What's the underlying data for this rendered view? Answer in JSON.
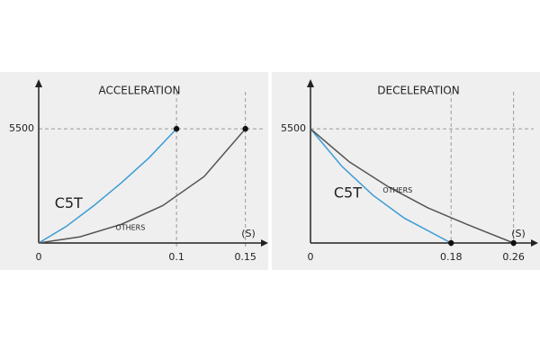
{
  "chart_data": [
    {
      "type": "line",
      "title": "ACCELERATION",
      "x_label": "(S)",
      "xlim": [
        0,
        0.16
      ],
      "ylim": [
        0,
        7500
      ],
      "xticks": [
        0,
        0.1,
        0.15
      ],
      "yticks": [
        5500
      ],
      "grid": true,
      "series": [
        {
          "name": "C5T",
          "color": "#3b9bd6",
          "x": [
            0,
            0.02,
            0.04,
            0.06,
            0.08,
            0.1
          ],
          "values": [
            0,
            800,
            1800,
            2900,
            4100,
            5500
          ]
        },
        {
          "name": "OTHERS",
          "color": "#555555",
          "x": [
            0,
            0.03,
            0.06,
            0.09,
            0.12,
            0.15
          ],
          "values": [
            0,
            300,
            900,
            1800,
            3200,
            5500
          ]
        }
      ]
    },
    {
      "type": "line",
      "title": "DECELERATION",
      "x_label": "(S)",
      "xlim": [
        0,
        0.28
      ],
      "ylim": [
        0,
        7500
      ],
      "xticks": [
        0,
        0.18,
        0.26
      ],
      "yticks": [
        5500
      ],
      "grid": true,
      "series": [
        {
          "name": "C5T",
          "color": "#3b9bd6",
          "x": [
            0,
            0.04,
            0.08,
            0.12,
            0.18
          ],
          "values": [
            5500,
            3700,
            2300,
            1200,
            0
          ]
        },
        {
          "name": "OTHERS",
          "color": "#555555",
          "x": [
            0,
            0.05,
            0.1,
            0.15,
            0.2,
            0.26
          ],
          "values": [
            5500,
            3900,
            2700,
            1700,
            900,
            0
          ]
        }
      ]
    }
  ]
}
